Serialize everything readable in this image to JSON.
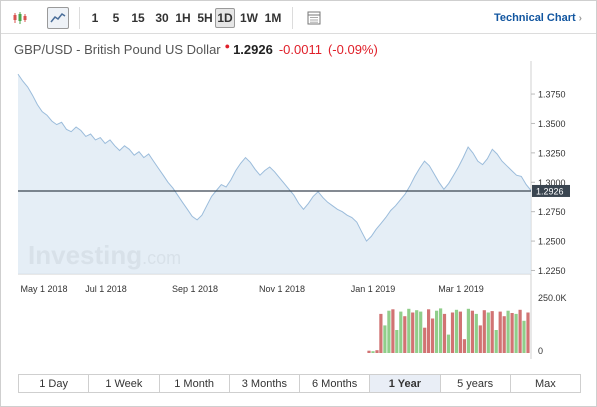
{
  "toolbar": {
    "chart_type_icons": [
      "candlestick-icon",
      "area-chart-icon"
    ],
    "intervals": [
      "1",
      "5",
      "15",
      "30",
      "1H",
      "5H",
      "1D",
      "1W",
      "1M"
    ],
    "active_interval": "1D",
    "settings_icon": "grid-table-icon",
    "technical_link": "Technical Chart",
    "technical_link_icon": "chevron-right-icon"
  },
  "header": {
    "pair": "GBP/USD - British Pound US Dollar",
    "price": "1.2926",
    "change": "-0.0011",
    "change_pct": "(-0.09%)",
    "down_color": "#e0202a"
  },
  "watermark": "Investing.com",
  "chart_data": {
    "type": "area",
    "title": "GBP/USD - British Pound US Dollar",
    "xlabel": "",
    "ylabel": "",
    "x_ticks": [
      "May 1 2018",
      "Jul 1 2018",
      "Sep 1 2018",
      "Nov 1 2018",
      "Jan 1 2019",
      "Mar 1 2019"
    ],
    "y_ticks": [
      "1.3750",
      "1.3500",
      "1.3250",
      "1.3000",
      "1.2750",
      "1.2500",
      "1.2250"
    ],
    "ylim": [
      1.222,
      1.398
    ],
    "current_price": 1.2926,
    "current_price_label": "1.2926",
    "series": [
      {
        "values": [
          1.392,
          1.386,
          1.381,
          1.374,
          1.366,
          1.36,
          1.357,
          1.352,
          1.349,
          1.351,
          1.345,
          1.343,
          1.347,
          1.344,
          1.339,
          1.341,
          1.336,
          1.338,
          1.333,
          1.336,
          1.331,
          1.327,
          1.331,
          1.328,
          1.323,
          1.326,
          1.321,
          1.324,
          1.318,
          1.312,
          1.306,
          1.3,
          1.295,
          1.289,
          1.283,
          1.277,
          1.271,
          1.268,
          1.272,
          1.28,
          1.288,
          1.293,
          1.298,
          1.296,
          1.302,
          1.31,
          1.316,
          1.321,
          1.317,
          1.311,
          1.306,
          1.31,
          1.313,
          1.309,
          1.304,
          1.299,
          1.294,
          1.289,
          1.282,
          1.277,
          1.282,
          1.288,
          1.292,
          1.287,
          1.283,
          1.28,
          1.277,
          1.275,
          1.272,
          1.27,
          1.266,
          1.258,
          1.25,
          1.254,
          1.26,
          1.265,
          1.27,
          1.276,
          1.28,
          1.285,
          1.29,
          1.297,
          1.305,
          1.312,
          1.318,
          1.314,
          1.307,
          1.3,
          1.294,
          1.299,
          1.306,
          1.313,
          1.321,
          1.33,
          1.325,
          1.318,
          1.315,
          1.32,
          1.328,
          1.324,
          1.318,
          1.314,
          1.31,
          1.306,
          1.305,
          1.298,
          1.293
        ]
      }
    ],
    "volume": {
      "axis_labels": [
        "250.0K",
        "0"
      ],
      "up_color": "#7cc576",
      "down_color": "#c95b5b",
      "values": [
        0.05,
        0.04,
        0.06,
        0.85,
        0.6,
        0.92,
        0.95,
        0.5,
        0.9,
        0.8,
        0.96,
        0.88,
        0.93,
        0.9,
        0.55,
        0.95,
        0.75,
        0.92,
        0.97,
        0.85,
        0.4,
        0.88,
        0.94,
        0.9,
        0.3,
        0.96,
        0.92,
        0.85,
        0.6,
        0.93,
        0.88,
        0.91,
        0.5,
        0.9,
        0.8,
        0.92,
        0.87,
        0.85,
        0.94,
        0.7,
        0.88
      ],
      "direction": [
        "d",
        "u",
        "d",
        "d",
        "u",
        "u",
        "d",
        "u",
        "u",
        "d",
        "u",
        "d",
        "u",
        "u",
        "d",
        "d",
        "d",
        "u",
        "u",
        "d",
        "u",
        "d",
        "u",
        "d",
        "d",
        "u",
        "d",
        "u",
        "d",
        "d",
        "u",
        "d",
        "u",
        "d",
        "d",
        "u",
        "d",
        "u",
        "d",
        "u",
        "d"
      ]
    }
  },
  "ranges": [
    "1 Day",
    "1 Week",
    "1 Month",
    "3 Months",
    "6 Months",
    "1 Year",
    "5 years",
    "Max"
  ],
  "active_range": "1 Year"
}
